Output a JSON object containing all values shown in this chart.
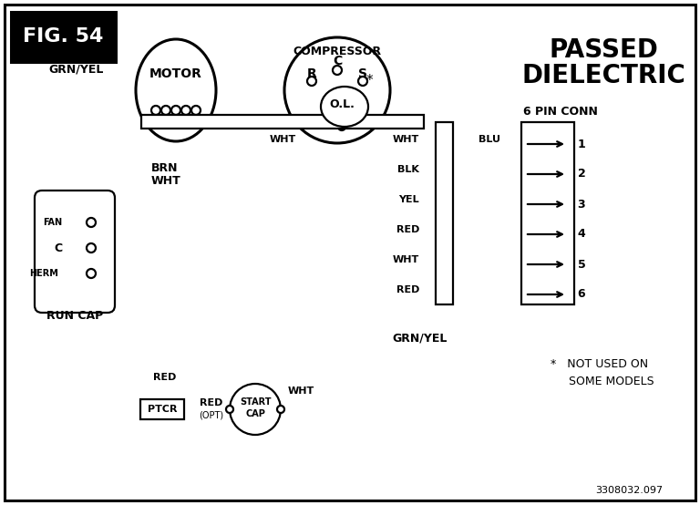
{
  "bg": "#ffffff",
  "fig_label": "FIG. 54",
  "passed1": "PASSED",
  "passed2": "DIELECTRIC",
  "part_no": "3308032.097",
  "not_used": "*   NOT USED ON\n     SOME MODELS",
  "pin_conn": "6 PIN CONN",
  "motor_txt": "MOTOR",
  "comp_txt": "COMPRESSOR",
  "run_cap_txt": "RUN CAP",
  "grn_yel": "GRN/YEL",
  "brn_txt": "BRN",
  "wht_txt": "WHT",
  "wire_labels": [
    "WHT",
    "BLK",
    "YEL",
    "RED",
    "WHT",
    "RED"
  ],
  "blu": "BLU",
  "pins": [
    "1",
    "2",
    "3",
    "4",
    "5",
    "6"
  ],
  "fan_txt": "FAN",
  "c_txt": "C",
  "herm_txt": "HERM",
  "ol_txt": "O.L.",
  "r_txt": "R",
  "s_txt": "S",
  "c_comp": "C",
  "ptcr_txt": "PTCR",
  "red_opt1": "RED",
  "red_opt2": "(OPT)",
  "start_cap1": "START",
  "start_cap2": "CAP",
  "red_txt": "RED",
  "wht_bot": "WHT",
  "grn_yel_bot": "GRN/YEL",
  "lw": 1.6,
  "lw_thick": 2.2
}
